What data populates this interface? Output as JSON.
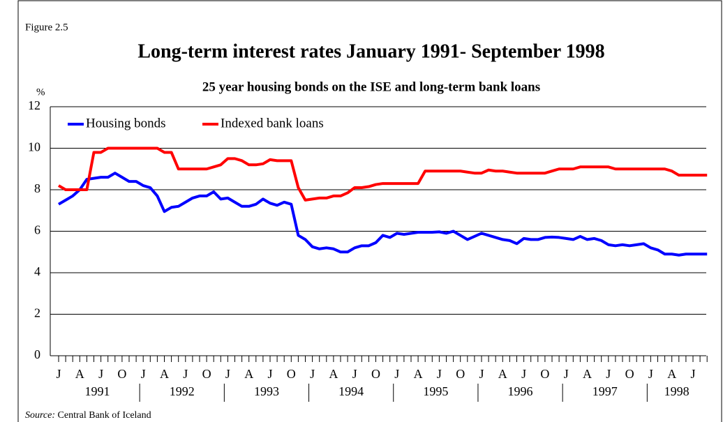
{
  "chart_data": {
    "type": "line",
    "figure_label": "Figure 2.5",
    "title": "Long-term interest rates January 1991- September 1998",
    "subtitle": "25 year housing bonds on the ISE and long-term bank loans",
    "y_unit": "%",
    "source_label": "Source:",
    "source": "Central Bank of Iceland",
    "categories": [
      "J",
      null,
      null,
      "A",
      null,
      null,
      "J",
      null,
      null,
      "O",
      null,
      null,
      "J",
      null,
      null,
      "A",
      null,
      null,
      "J",
      null,
      null,
      "O",
      null,
      null,
      "J",
      null,
      null,
      "A",
      null,
      null,
      "J",
      null,
      null,
      "O",
      null,
      null,
      "J",
      null,
      null,
      "A",
      null,
      null,
      "J",
      null,
      null,
      "O",
      null,
      null,
      "J",
      null,
      null,
      "A",
      null,
      null,
      "J",
      null,
      null,
      "O",
      null,
      null,
      "J",
      null,
      null,
      "A",
      null,
      null,
      "J",
      null,
      null,
      "O",
      null,
      null,
      "J",
      null,
      null,
      "A",
      null,
      null,
      "J",
      null,
      null,
      "O",
      null,
      null,
      "J",
      null,
      null,
      "A",
      null,
      null,
      "J",
      null,
      null
    ],
    "year_labels": [
      "1991",
      "1992",
      "1993",
      "1994",
      "1995",
      "1996",
      "1997",
      "1998"
    ],
    "ylim": [
      0,
      12
    ],
    "yticks": [
      0,
      2,
      4,
      6,
      8,
      10,
      12
    ],
    "grid": true,
    "legend": "top-left",
    "series": [
      {
        "name": "Housing bonds",
        "color": "#0000ff",
        "values": [
          7.3,
          7.5,
          7.7,
          8.0,
          8.5,
          8.55,
          8.6,
          8.6,
          8.8,
          8.6,
          8.4,
          8.4,
          8.2,
          8.1,
          7.7,
          6.95,
          7.15,
          7.2,
          7.4,
          7.6,
          7.7,
          7.7,
          7.9,
          7.55,
          7.6,
          7.4,
          7.2,
          7.2,
          7.3,
          7.55,
          7.35,
          7.25,
          7.4,
          7.3,
          5.8,
          5.6,
          5.25,
          5.15,
          5.2,
          5.15,
          5.0,
          5.0,
          5.2,
          5.3,
          5.3,
          5.45,
          5.8,
          5.7,
          5.9,
          5.85,
          5.9,
          5.95,
          5.95,
          5.95,
          5.97,
          5.9,
          6.0,
          5.8,
          5.6,
          5.75,
          5.9,
          5.8,
          5.7,
          5.6,
          5.55,
          5.4,
          5.65,
          5.6,
          5.6,
          5.7,
          5.72,
          5.7,
          5.65,
          5.6,
          5.75,
          5.6,
          5.65,
          5.55,
          5.35,
          5.3,
          5.35,
          5.3,
          5.35,
          5.4,
          5.2,
          5.1,
          4.9,
          4.9,
          4.85,
          4.9,
          4.9,
          4.9,
          4.9
        ]
      },
      {
        "name": "Indexed bank loans",
        "color": "#ff0000",
        "values": [
          8.2,
          8.0,
          8.0,
          8.0,
          8.0,
          9.8,
          9.8,
          10.0,
          10.0,
          10.0,
          10.0,
          10.0,
          10.0,
          10.0,
          10.0,
          9.8,
          9.8,
          9.0,
          9.0,
          9.0,
          9.0,
          9.0,
          9.1,
          9.2,
          9.5,
          9.5,
          9.4,
          9.2,
          9.2,
          9.25,
          9.45,
          9.4,
          9.4,
          9.4,
          8.1,
          7.5,
          7.55,
          7.6,
          7.6,
          7.7,
          7.7,
          7.85,
          8.1,
          8.1,
          8.15,
          8.25,
          8.3,
          8.3,
          8.3,
          8.3,
          8.3,
          8.3,
          8.9,
          8.9,
          8.9,
          8.9,
          8.9,
          8.9,
          8.85,
          8.8,
          8.8,
          8.95,
          8.9,
          8.9,
          8.85,
          8.8,
          8.8,
          8.8,
          8.8,
          8.8,
          8.9,
          9.0,
          9.0,
          9.0,
          9.1,
          9.1,
          9.1,
          9.1,
          9.1,
          9.0,
          9.0,
          9.0,
          9.0,
          9.0,
          9.0,
          9.0,
          9.0,
          8.9,
          8.7,
          8.7,
          8.7,
          8.7,
          8.7
        ]
      }
    ]
  }
}
